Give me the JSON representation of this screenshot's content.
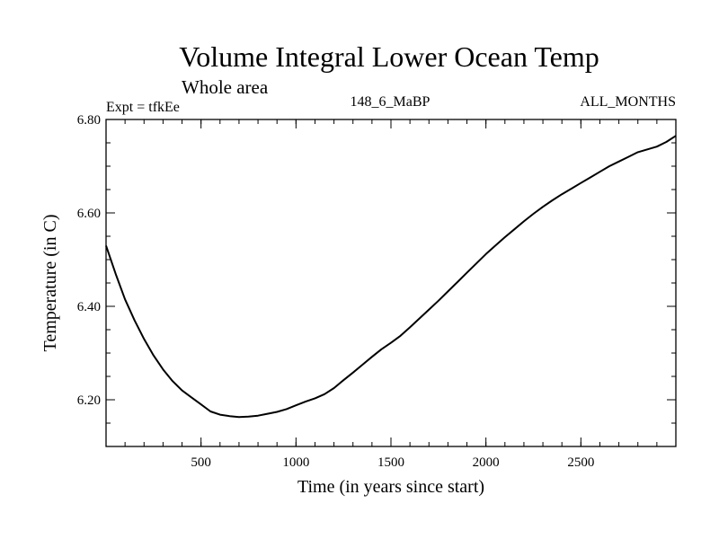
{
  "chart_data": {
    "type": "line",
    "title": "Volume Integral Lower Ocean Temp",
    "subtitle": "Whole area",
    "header_left": "Expt = tfkEe",
    "header_center": "148_6_MaBP",
    "header_right": "ALL_MONTHS",
    "xlabel": "Time (in years since start)",
    "ylabel": "Temperature (in C)",
    "xlim": [
      0,
      3000
    ],
    "ylim": [
      6.1,
      6.8
    ],
    "xticks": [
      500,
      1000,
      1500,
      2000,
      2500
    ],
    "xtick_labels": [
      "500",
      "1000",
      "1500",
      "2000",
      "2500"
    ],
    "yticks": [
      6.2,
      6.4,
      6.6,
      6.8
    ],
    "ytick_labels": [
      "6.20",
      "6.40",
      "6.60",
      "6.80"
    ],
    "grid": false,
    "series": [
      {
        "x": [
          0,
          50,
          100,
          150,
          200,
          250,
          300,
          350,
          400,
          450,
          500,
          550,
          600,
          650,
          700,
          750,
          800,
          850,
          900,
          950,
          1000,
          1050,
          1100,
          1150,
          1200,
          1250,
          1300,
          1350,
          1400,
          1450,
          1500,
          1550,
          1600,
          1650,
          1700,
          1750,
          1800,
          1850,
          1900,
          1950,
          2000,
          2050,
          2100,
          2150,
          2200,
          2250,
          2300,
          2350,
          2400,
          2450,
          2500,
          2550,
          2600,
          2650,
          2700,
          2750,
          2800,
          2850,
          2900,
          2950,
          3000
        ],
        "y": [
          6.53,
          6.47,
          6.415,
          6.37,
          6.33,
          6.295,
          6.265,
          6.24,
          6.22,
          6.205,
          6.19,
          6.175,
          6.168,
          6.165,
          6.163,
          6.164,
          6.166,
          6.17,
          6.174,
          6.18,
          6.188,
          6.196,
          6.203,
          6.212,
          6.225,
          6.242,
          6.258,
          6.275,
          6.292,
          6.308,
          6.322,
          6.337,
          6.355,
          6.374,
          6.393,
          6.412,
          6.432,
          6.452,
          6.472,
          6.492,
          6.512,
          6.53,
          6.548,
          6.565,
          6.582,
          6.598,
          6.613,
          6.627,
          6.64,
          6.652,
          6.664,
          6.676,
          6.688,
          6.7,
          6.71,
          6.72,
          6.73,
          6.736,
          6.742,
          6.752,
          6.765
        ]
      }
    ]
  }
}
